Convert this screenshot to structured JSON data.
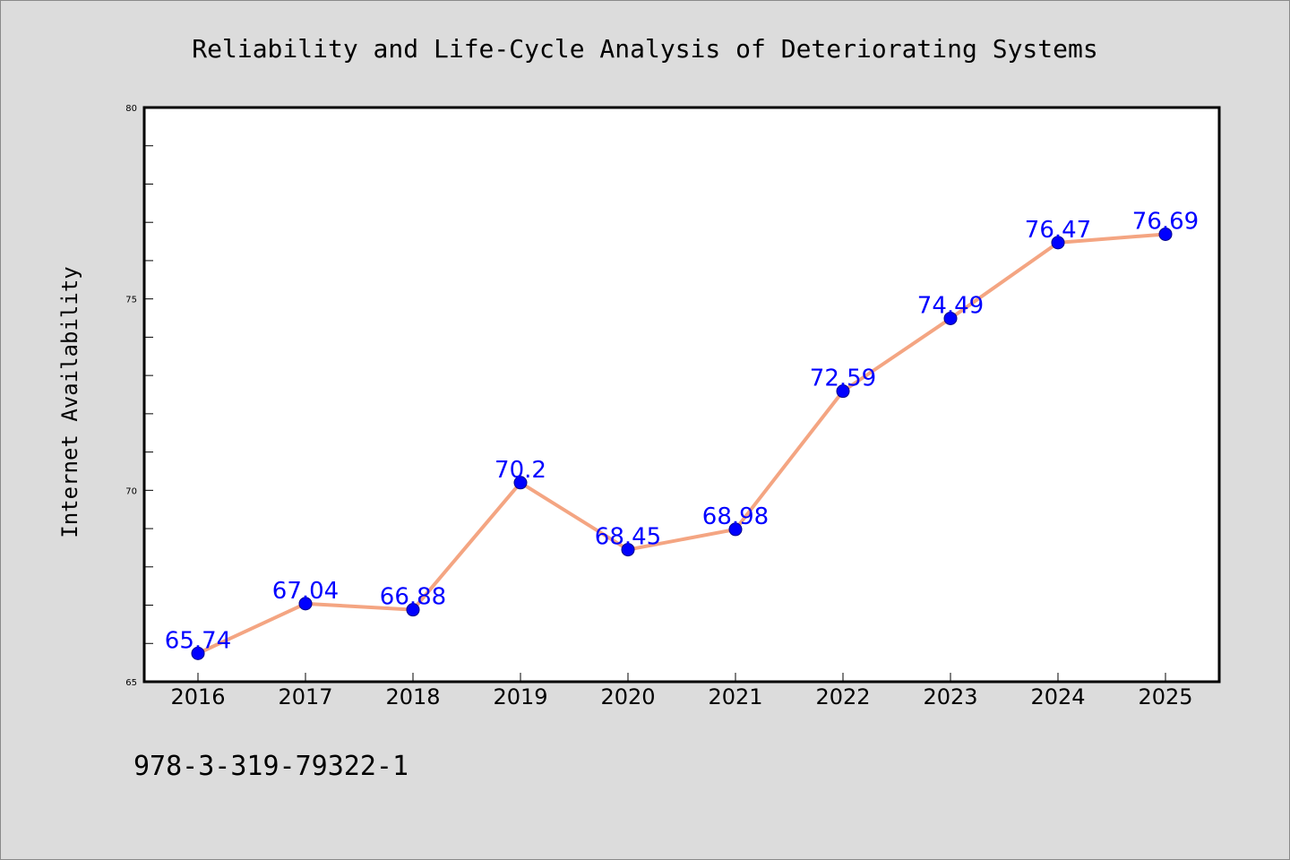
{
  "chart_data": {
    "type": "line",
    "title": "Reliability and Life-Cycle Analysis of Deteriorating Systems",
    "xlabel": "",
    "ylabel": "Internet Availability",
    "categories": [
      "2016",
      "2017",
      "2018",
      "2019",
      "2020",
      "2021",
      "2022",
      "2023",
      "2024",
      "2025"
    ],
    "series": [
      {
        "values": [
          65.74,
          67.04,
          66.88,
          70.2,
          68.45,
          68.98,
          72.59,
          74.49,
          76.47,
          76.69
        ],
        "labels": [
          "65.74",
          "67.04",
          "66.88",
          "70.2",
          "68.45",
          "68.98",
          "72.59",
          "74.49",
          "76.47",
          "76.69"
        ]
      }
    ],
    "ylim": [
      65,
      80
    ],
    "yticks": [
      65,
      70,
      75,
      80
    ],
    "ytick_labels": [
      "65",
      "70",
      "75",
      "80"
    ],
    "y_minor_step": 1,
    "grid": false,
    "legend": "none",
    "colors": {
      "line": "#f4a582",
      "marker": "#0000ff",
      "data_label": "#0000ff",
      "plot_background": "#ffffff",
      "figure_background": "#dcdcdc"
    }
  },
  "footnote": "978-3-319-79322-1"
}
